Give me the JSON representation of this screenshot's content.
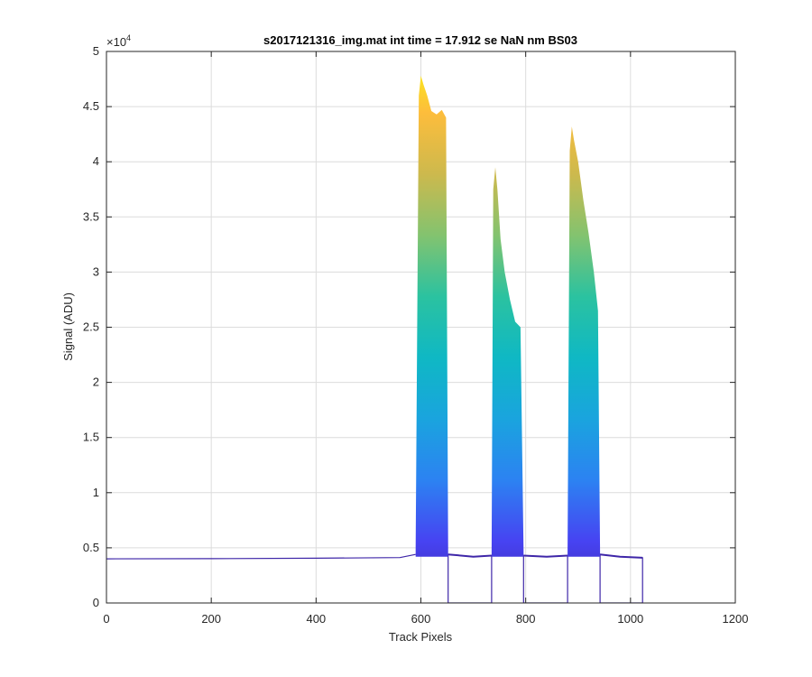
{
  "chart_data": {
    "type": "area",
    "title": "s2017121316_img.mat int time = 17.912 se  NaN nm BS03",
    "xlabel": "Track Pixels",
    "ylabel": "Signal (ADU)",
    "xlim": [
      0,
      1200
    ],
    "ylim": [
      0,
      50000
    ],
    "y_exponent_label": "×10",
    "y_exponent_power": "4",
    "x_ticks": [
      0,
      200,
      400,
      600,
      800,
      1000,
      1200
    ],
    "x_tick_labels": [
      "0",
      "200",
      "400",
      "600",
      "800",
      "1000",
      "1200"
    ],
    "y_ticks": [
      0,
      5000,
      10000,
      15000,
      20000,
      25000,
      30000,
      35000,
      40000,
      45000,
      50000
    ],
    "y_tick_labels": [
      "0",
      "0.5",
      "1",
      "1.5",
      "2",
      "2.5",
      "3",
      "3.5",
      "4",
      "4.5",
      "5"
    ],
    "grid": true,
    "colormap": "parula",
    "colormap_stops": [
      "#3e26a8",
      "#4743f2",
      "#2c82f2",
      "#1aa4de",
      "#0fb8c4",
      "#2bc2a0",
      "#83c36f",
      "#cdb94d",
      "#fdbd3c",
      "#f9fb0e"
    ],
    "baseline": {
      "x": [
        0,
        200,
        400,
        560,
        590
      ],
      "y": [
        4000,
        4020,
        4060,
        4120,
        4400
      ]
    },
    "peaks": [
      {
        "x": [
          590,
          596,
          600,
          605,
          612,
          620,
          630,
          640,
          648,
          652
        ],
        "y": [
          5000,
          46000,
          47800,
          47000,
          46000,
          44600,
          44300,
          44700,
          44000,
          5000
        ]
      },
      {
        "x": [
          735,
          738,
          742,
          746,
          752,
          760,
          770,
          780,
          790,
          796
        ],
        "y": [
          4800,
          37500,
          39500,
          37500,
          33000,
          30000,
          27500,
          25500,
          25000,
          4700
        ]
      },
      {
        "x": [
          880,
          884,
          888,
          892,
          900,
          910,
          920,
          930,
          938,
          942
        ],
        "y": [
          4800,
          41000,
          43200,
          42000,
          40000,
          36500,
          33500,
          30000,
          26500,
          4600
        ]
      }
    ],
    "gaps": [
      {
        "x": [
          652,
          700,
          735
        ],
        "y": [
          4400,
          4200,
          4300
        ]
      },
      {
        "x": [
          796,
          840,
          880
        ],
        "y": [
          4300,
          4200,
          4300
        ]
      },
      {
        "x": [
          942,
          980,
          1023
        ],
        "y": [
          4400,
          4200,
          4100
        ]
      }
    ]
  }
}
